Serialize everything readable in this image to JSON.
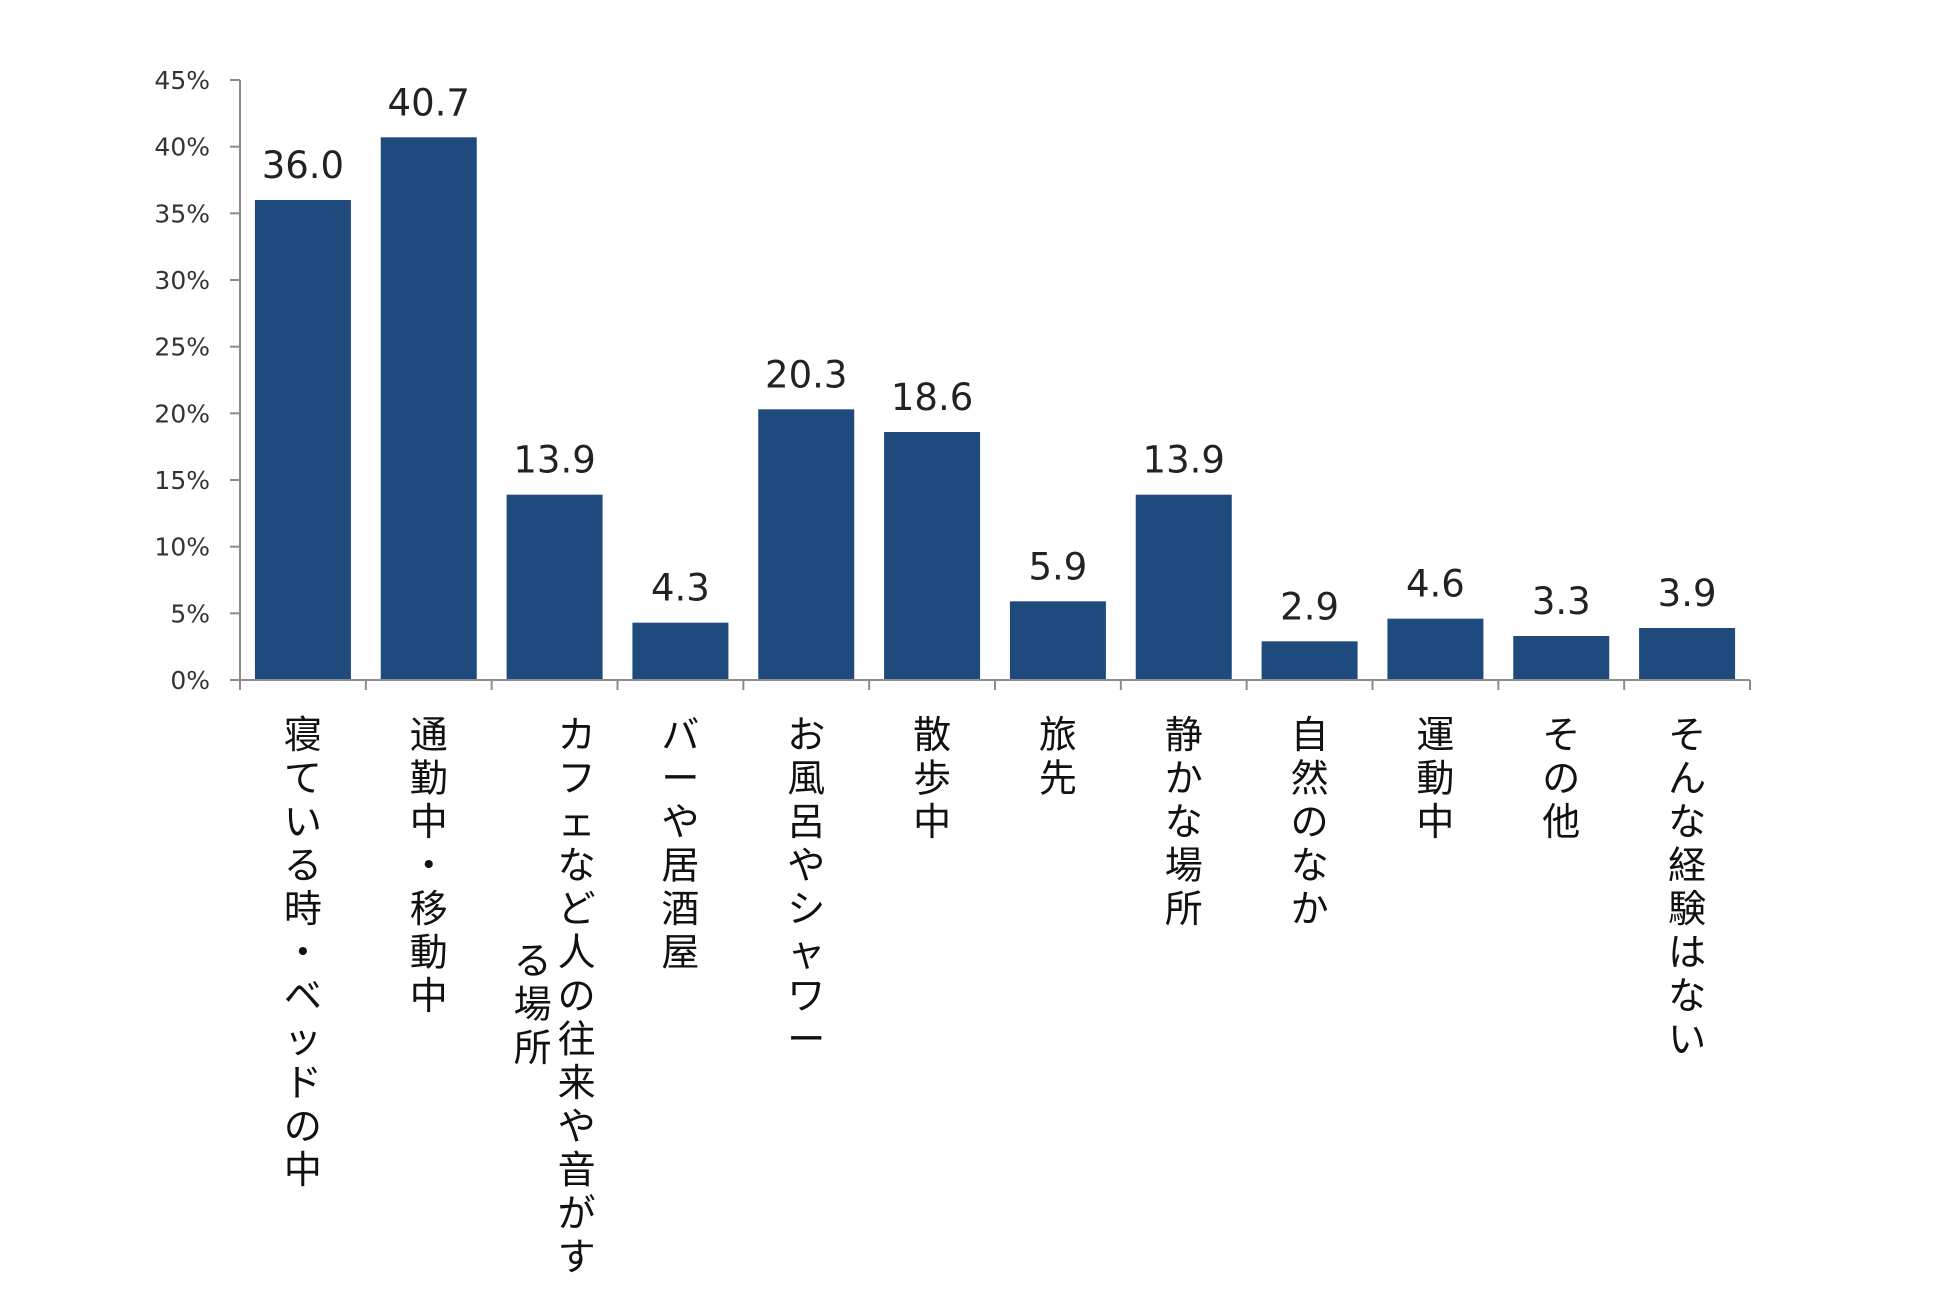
{
  "chart_data": {
    "type": "bar",
    "categories": [
      "寝ている時・ベッドの中",
      "通勤中・移動中",
      "カフェなど人の往来や音がする場所",
      "バーや居酒屋",
      "お風呂やシャワー",
      "散歩中",
      "旅先",
      "静かな場所",
      "自然のなか",
      "運動中",
      "その他",
      "そんな経験はない"
    ],
    "category_label_lines": [
      [
        "寝ている時・ベッドの中"
      ],
      [
        "通勤中・移動中"
      ],
      [
        "カフェなど人の往来や音がす",
        "る場所"
      ],
      [
        "バーや居酒屋"
      ],
      [
        "お風呂やシャワー"
      ],
      [
        "散歩中"
      ],
      [
        "旅先"
      ],
      [
        "静かな場所"
      ],
      [
        "自然のなか"
      ],
      [
        "運動中"
      ],
      [
        "その他"
      ],
      [
        "そんな経験はない"
      ]
    ],
    "values": [
      36.0,
      40.7,
      13.9,
      4.3,
      20.3,
      18.6,
      5.9,
      13.9,
      2.9,
      4.6,
      3.3,
      3.9
    ],
    "value_labels": [
      "36.0",
      "40.7",
      "13.9",
      "4.3",
      "20.3",
      "18.6",
      "5.9",
      "13.9",
      "2.9",
      "4.6",
      "3.3",
      "3.9"
    ],
    "y_ticks": [
      0,
      5,
      10,
      15,
      20,
      25,
      30,
      35,
      40,
      45
    ],
    "y_tick_labels": [
      "0%",
      "5%",
      "10%",
      "15%",
      "20%",
      "25%",
      "30%",
      "35%",
      "40%",
      "45%"
    ],
    "ylim": [
      0,
      45
    ],
    "bar_color": "#1f4a7d",
    "axis_color": "#8c8c8c",
    "grid": false,
    "title": "",
    "xlabel": "",
    "ylabel": ""
  }
}
